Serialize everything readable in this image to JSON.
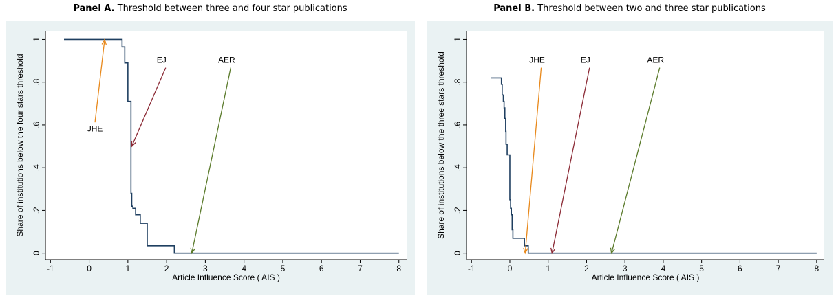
{
  "chart_data": [
    {
      "type": "line",
      "drawstyle": "steps-post",
      "panel_label": "Panel A.",
      "title": "Threshold between three and four star publications",
      "xlabel": "Article Influence Score ( AIS )",
      "ylabel": "Share of institutions below the four stars threshold",
      "x": [
        -0.65,
        0.85,
        0.92,
        1.0,
        1.08,
        1.1,
        1.13,
        1.2,
        1.32,
        1.5,
        2.2,
        8
      ],
      "values": [
        1.0,
        0.965,
        0.89,
        0.71,
        0.28,
        0.22,
        0.21,
        0.18,
        0.14,
        0.035,
        0,
        0
      ],
      "color": "#1f3f60",
      "xlim": [
        -1.13,
        8.2
      ],
      "ylim": [
        -0.03,
        1.04
      ],
      "xticks": [
        -1,
        0,
        1,
        2,
        3,
        4,
        5,
        6,
        7,
        8
      ],
      "yticks": [
        0,
        {
          "value": 0.2,
          "label": ".2"
        },
        {
          "value": 0.4,
          "label": ".4"
        },
        {
          "value": 0.6,
          "label": ".6"
        },
        {
          "value": 0.8,
          "label": ".8"
        },
        1
      ],
      "annotations": [
        {
          "text": "JHE",
          "x": 0.4,
          "y": 1.0,
          "color": "#e8891c"
        },
        {
          "text": "EJ",
          "x": 1.1,
          "y": 0.5,
          "color": "#8b2a35"
        },
        {
          "text": "AER",
          "x": 2.65,
          "y": 0,
          "color": "#5a7a2a"
        }
      ]
    },
    {
      "type": "line",
      "drawstyle": "steps-post",
      "panel_label": "Panel B.",
      "title": "Threshold between two and three star publications",
      "xlabel": "Article Influence Score ( AIS )",
      "ylabel": "Share of institutions below the three stars threshold",
      "x": [
        -0.5,
        -0.22,
        -0.2,
        -0.17,
        -0.15,
        -0.13,
        -0.11,
        -0.1,
        -0.07,
        0.0,
        0.02,
        0.04,
        0.06,
        0.08,
        0.38,
        0.48,
        8
      ],
      "values": [
        0.82,
        0.79,
        0.74,
        0.71,
        0.68,
        0.63,
        0.57,
        0.51,
        0.46,
        0.25,
        0.21,
        0.18,
        0.11,
        0.07,
        0.035,
        0,
        0
      ],
      "color": "#1f3f60",
      "xlim": [
        -1.13,
        8.2
      ],
      "ylim": [
        -0.03,
        1.04
      ],
      "xticks": [
        -1,
        0,
        1,
        2,
        3,
        4,
        5,
        6,
        7,
        8
      ],
      "yticks": [
        0,
        {
          "value": 0.2,
          "label": ".2"
        },
        {
          "value": 0.4,
          "label": ".4"
        },
        {
          "value": 0.6,
          "label": ".6"
        },
        {
          "value": 0.8,
          "label": ".8"
        },
        1
      ],
      "annotations": [
        {
          "text": "JHE",
          "x": 0.4,
          "y": 0,
          "color": "#e8891c"
        },
        {
          "text": "EJ",
          "x": 1.1,
          "y": 0,
          "color": "#8b2a35"
        },
        {
          "text": "AER",
          "x": 2.65,
          "y": 0,
          "color": "#5a7a2a"
        }
      ]
    }
  ]
}
